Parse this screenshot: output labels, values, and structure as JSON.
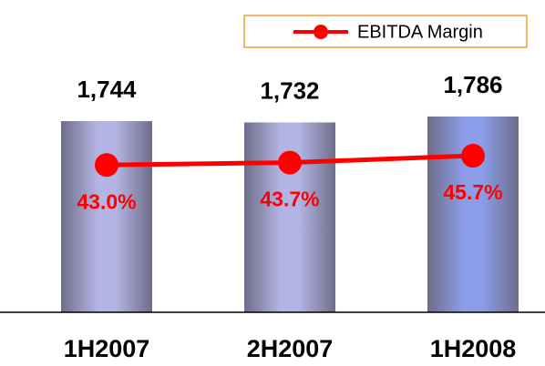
{
  "chart_data": {
    "type": "bar",
    "categories": [
      "1H2007",
      "2H2007",
      "1H2008"
    ],
    "series": [
      {
        "type": "bar",
        "values": [
          1744,
          1732,
          1786
        ],
        "value_labels": [
          "1,744",
          "1,732",
          "1,786"
        ],
        "colors": [
          "#b4b4e4",
          "#b4b4e4",
          "#8c9eea"
        ]
      },
      {
        "type": "line",
        "name": "EBITDA Margin",
        "color": "#ff0000",
        "axis": "y2",
        "values": [
          43.0,
          43.7,
          45.7
        ],
        "value_labels": [
          "43.0%",
          "43.7%",
          "45.7%"
        ]
      }
    ],
    "ylim": [
      0,
      2500
    ],
    "y2lim": [
      0,
      80
    ],
    "legend": "top-right"
  }
}
